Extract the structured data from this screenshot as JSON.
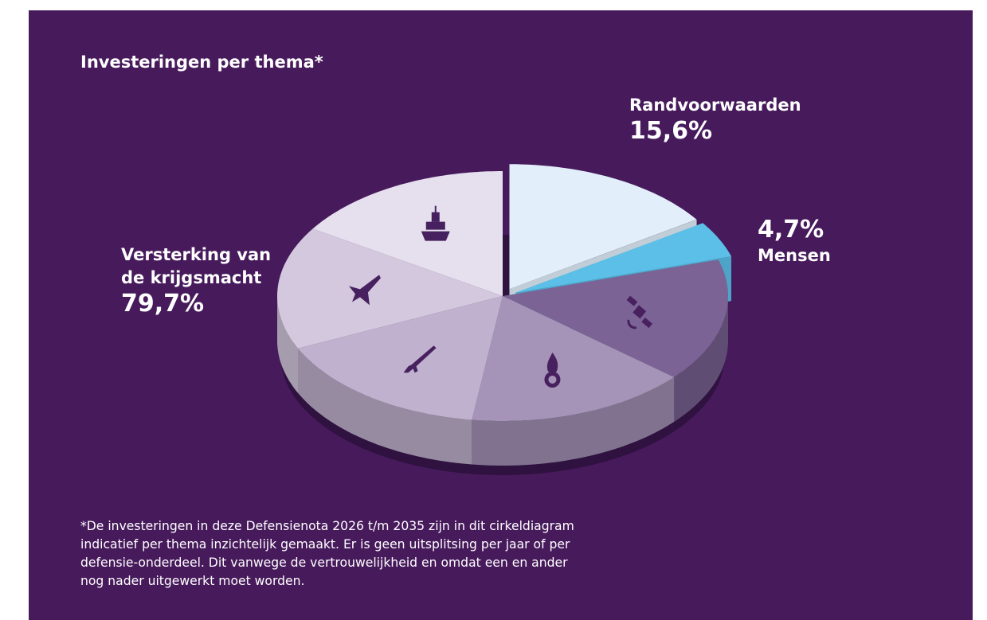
{
  "title": "Investeringen per thema*",
  "chart_data": {
    "type": "pie",
    "title": "Investeringen per thema*",
    "slices": [
      {
        "label": "Randvoorwaarden",
        "value": 15.6,
        "value_text": "15,6%",
        "color": "#e2effa"
      },
      {
        "label": "Mensen",
        "value": 4.7,
        "value_text": "4,7%",
        "color": "#5bbfe8"
      },
      {
        "label": "Versterking van de krijgsmacht",
        "value": 79.7,
        "value_text": "79,7%",
        "color": "#b9a6c9",
        "segments": [
          {
            "icon": "satellite-icon",
            "color": "#7b6395"
          },
          {
            "icon": "grenade-icon",
            "color": "#a594b7"
          },
          {
            "icon": "rifle-icon",
            "color": "#c0b2cf"
          },
          {
            "icon": "fighter-jet-icon",
            "color": "#d3c8de"
          },
          {
            "icon": "ship-icon",
            "color": "#e6e0ee"
          }
        ]
      }
    ],
    "legend": "none"
  },
  "labels": {
    "randvoorwaarden_name": "Randvoorwaarden",
    "randvoorwaarden_pct": "15,6%",
    "mensen_pct": "4,7%",
    "mensen_name": "Mensen",
    "versterking_name_line1": "Versterking van",
    "versterking_name_line2": "de krijgsmacht",
    "versterking_pct": "79,7%"
  },
  "footnote": {
    "line1": "*De investeringen in deze Defensienota 2026 t/m 2035 zijn in dit cirkeldiagram",
    "line2": "indicatief per thema inzichtelijk gemaakt. Er is geen uitsplitsing per jaar of per",
    "line3": "defensie-onderdeel. Dit vanwege de vertrouwelijkheid en omdat een en ander",
    "line4": "nog nader uitgewerkt moet worden."
  }
}
